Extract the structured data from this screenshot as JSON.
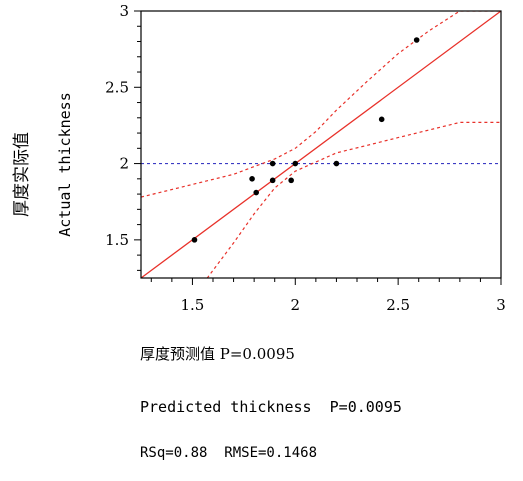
{
  "chart_data": {
    "type": "scatter",
    "xlim": [
      1.25,
      3
    ],
    "ylim": [
      1.25,
      3
    ],
    "x_ticks": [
      "1.5",
      "2",
      "2.5",
      "3"
    ],
    "y_ticks": [
      "1.5",
      "2",
      "2.5",
      "3"
    ],
    "ylabel_cn": "厚度实际值",
    "ylabel_en": "Actual thickness",
    "xlabel_cn": "厚度预测值 P=0.0095",
    "xlabel_en": "Predicted thickness  P=0.0095",
    "stats": "RSq=0.88  RMSE=0.1468",
    "grid": false,
    "points": [
      {
        "x": 1.51,
        "y": 1.5
      },
      {
        "x": 1.79,
        "y": 1.9
      },
      {
        "x": 1.81,
        "y": 1.81
      },
      {
        "x": 1.89,
        "y": 2.0
      },
      {
        "x": 1.89,
        "y": 1.89
      },
      {
        "x": 1.98,
        "y": 1.89
      },
      {
        "x": 2.0,
        "y": 2.0
      },
      {
        "x": 2.2,
        "y": 2.0
      },
      {
        "x": 2.42,
        "y": 2.29
      },
      {
        "x": 2.59,
        "y": 2.81
      }
    ],
    "fit_line": {
      "x": [
        1.25,
        3.0
      ],
      "y": [
        1.25,
        3.0
      ]
    },
    "mean_line": {
      "y": 2.0
    },
    "confidence_band": {
      "upper": {
        "x": [
          1.25,
          1.4,
          1.55,
          1.7,
          1.8,
          1.9,
          2.0,
          2.1,
          2.2,
          2.35,
          2.5,
          2.65,
          2.8,
          3.0
        ],
        "y": [
          1.78,
          1.83,
          1.88,
          1.93,
          1.98,
          2.03,
          2.1,
          2.21,
          2.35,
          2.54,
          2.72,
          2.87,
          3.0,
          3.0
        ]
      },
      "lower": {
        "x": [
          1.25,
          1.4,
          1.55,
          1.7,
          1.8,
          1.9,
          2.0,
          2.1,
          2.2,
          2.35,
          2.5,
          2.65,
          2.8,
          3.0
        ],
        "y": [
          0.74,
          0.99,
          1.21,
          1.48,
          1.67,
          1.84,
          1.95,
          2.01,
          2.07,
          2.12,
          2.17,
          2.22,
          2.27,
          2.27
        ]
      }
    },
    "colors": {
      "points": "#000000",
      "fit": "#e8312a",
      "band": "#e8312a",
      "mean": "#3b3bc4",
      "axes": "#000000"
    }
  }
}
